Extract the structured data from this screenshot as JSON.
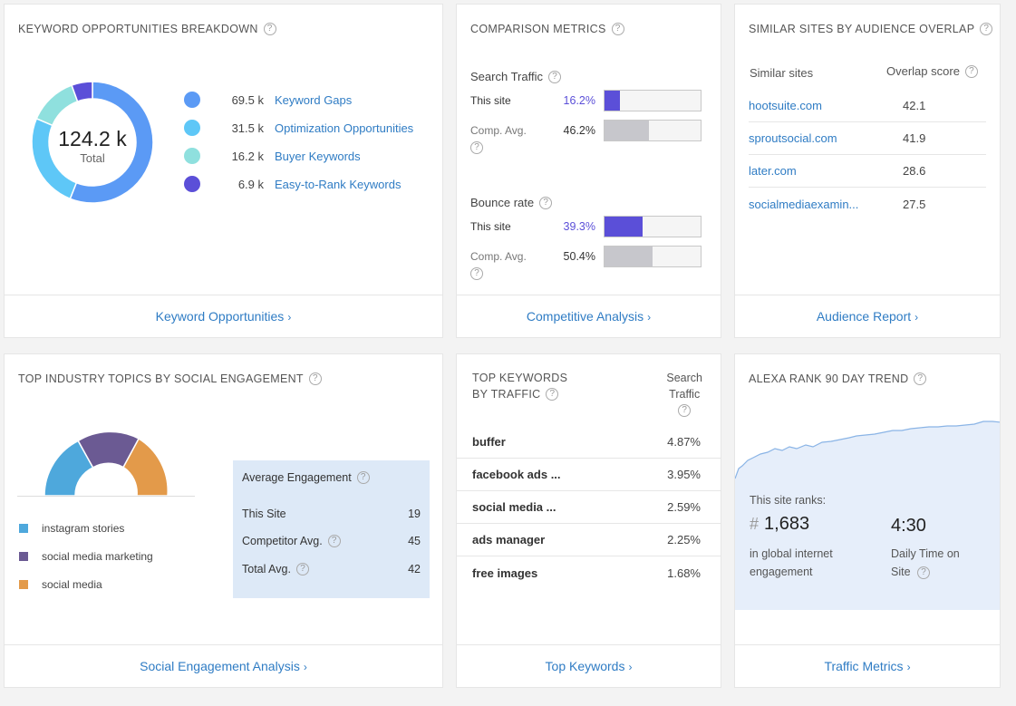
{
  "keyword_card": {
    "title": "KEYWORD OPPORTUNITIES BREAKDOWN",
    "total_value": "124.2 k",
    "total_label": "Total",
    "items": [
      {
        "value": "69.5 k",
        "label": "Keyword Gaps",
        "color": "#5b9af5"
      },
      {
        "value": "31.5 k",
        "label": "Optimization Opportunities",
        "color": "#5ec7f7"
      },
      {
        "value": "16.2 k",
        "label": "Buyer Keywords",
        "color": "#8fe0de"
      },
      {
        "value": "6.9 k",
        "label": "Easy-to-Rank Keywords",
        "color": "#5b4fd8"
      }
    ],
    "footer": "Keyword Opportunities"
  },
  "chart_data": {
    "type": "pie",
    "categories": [
      "Keyword Gaps",
      "Optimization Opportunities",
      "Buyer Keywords",
      "Easy-to-Rank Keywords"
    ],
    "values": [
      69.5,
      31.5,
      16.2,
      6.9
    ],
    "title": "KEYWORD OPPORTUNITIES BREAKDOWN"
  },
  "comparison": {
    "title": "COMPARISON METRICS",
    "search_traffic": {
      "label": "Search Traffic",
      "this_label": "This site",
      "this_value": "16.2%",
      "this_fraction": 0.162,
      "comp_label": "Comp. Avg.",
      "comp_value": "46.2%",
      "comp_fraction": 0.462
    },
    "bounce_rate": {
      "label": "Bounce rate",
      "this_label": "This site",
      "this_value": "39.3%",
      "this_fraction": 0.393,
      "comp_label": "Comp. Avg.",
      "comp_value": "50.4%",
      "comp_fraction": 0.504
    },
    "footer": "Competitive Analysis"
  },
  "similar": {
    "title": "SIMILAR SITES BY AUDIENCE OVERLAP",
    "col_site": "Similar sites",
    "col_score": "Overlap score",
    "rows": [
      {
        "site": "hootsuite.com",
        "score": "42.1"
      },
      {
        "site": "sproutsocial.com",
        "score": "41.9"
      },
      {
        "site": "later.com",
        "score": "28.6"
      },
      {
        "site": "socialmediaexamin...",
        "score": "27.5"
      }
    ],
    "footer": "Audience Report"
  },
  "social": {
    "title": "TOP INDUSTRY TOPICS BY SOCIAL ENGAGEMENT",
    "legend": [
      {
        "label": "instagram stories",
        "color": "#4ea8dc"
      },
      {
        "label": "social media marketing",
        "color": "#6b5a93"
      },
      {
        "label": "social media",
        "color": "#e39a4a"
      }
    ],
    "engagement": {
      "title": "Average Engagement",
      "rows": [
        {
          "label": "This Site",
          "value": "19"
        },
        {
          "label": "Competitor Avg.",
          "value": "45"
        },
        {
          "label": "Total Avg.",
          "value": "42"
        }
      ]
    },
    "footer": "Social Engagement Analysis"
  },
  "top_keywords": {
    "title_line1": "TOP KEYWORDS",
    "title_line2": "BY TRAFFIC",
    "col_line1": "Search",
    "col_line2": "Traffic",
    "rows": [
      {
        "keyword": "buffer",
        "value": "4.87%"
      },
      {
        "keyword": "facebook ads ...",
        "value": "3.95%"
      },
      {
        "keyword": "social media ...",
        "value": "2.59%"
      },
      {
        "keyword": "ads manager",
        "value": "2.25%"
      },
      {
        "keyword": "free images",
        "value": "1.68%"
      }
    ],
    "footer": "Top Keywords"
  },
  "alexa": {
    "title": "ALEXA RANK 90 DAY TREND",
    "ranks_label": "This site ranks:",
    "hash": "#",
    "rank_value": "1,683",
    "rank_desc": "in global internet engagement",
    "time_value": "4:30",
    "time_desc": "Daily Time on Site",
    "footer": "Traffic Metrics"
  },
  "colors": {
    "link": "#2f7cc4",
    "this_bar": "#5b4fd8",
    "comp_bar": "#c7c7cc",
    "alexa_fill": "#e6eefa",
    "alexa_line": "#8ab4e6"
  }
}
